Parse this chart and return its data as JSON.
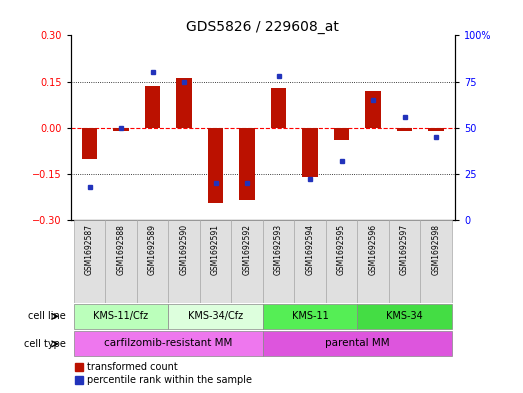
{
  "title": "GDS5826 / 229608_at",
  "samples": [
    "GSM1692587",
    "GSM1692588",
    "GSM1692589",
    "GSM1692590",
    "GSM1692591",
    "GSM1692592",
    "GSM1692593",
    "GSM1692594",
    "GSM1692595",
    "GSM1692596",
    "GSM1692597",
    "GSM1692598"
  ],
  "transformed_count": [
    -0.1,
    -0.01,
    0.135,
    0.16,
    -0.245,
    -0.235,
    0.13,
    -0.16,
    -0.04,
    0.12,
    -0.01,
    -0.01
  ],
  "percentile_rank": [
    18,
    50,
    80,
    75,
    20,
    20,
    78,
    22,
    32,
    65,
    56,
    45
  ],
  "cell_line_groups": [
    {
      "label": "KMS-11/Cfz",
      "start": 0,
      "end": 2,
      "color": "#bbffbb"
    },
    {
      "label": "KMS-34/Cfz",
      "start": 3,
      "end": 5,
      "color": "#ddffdd"
    },
    {
      "label": "KMS-11",
      "start": 6,
      "end": 8,
      "color": "#55ee55"
    },
    {
      "label": "KMS-34",
      "start": 9,
      "end": 11,
      "color": "#44dd44"
    }
  ],
  "cell_type_groups": [
    {
      "label": "carfilzomib-resistant MM",
      "start": 0,
      "end": 5,
      "color": "#ee77ee"
    },
    {
      "label": "parental MM",
      "start": 6,
      "end": 11,
      "color": "#dd55dd"
    }
  ],
  "bar_color": "#bb1100",
  "dot_color": "#2233bb",
  "ylim_left": [
    -0.3,
    0.3
  ],
  "ylim_right": [
    0,
    100
  ],
  "yticks_left": [
    -0.3,
    -0.15,
    0.0,
    0.15,
    0.3
  ],
  "yticks_right": [
    0,
    25,
    50,
    75,
    100
  ],
  "ytick_labels_right": [
    "0",
    "25",
    "50",
    "75",
    "100%"
  ],
  "hlines": [
    -0.15,
    0.0,
    0.15
  ],
  "hline_styles": [
    "dotted",
    "dashed",
    "dotted"
  ],
  "bar_width": 0.5,
  "title_fontsize": 10,
  "tick_fontsize": 7,
  "sample_fontsize": 5.5,
  "annot_fontsize": 7,
  "legend_fontsize": 7
}
